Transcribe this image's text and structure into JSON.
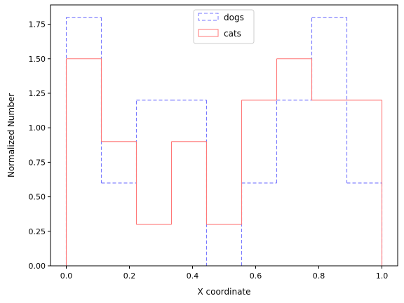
{
  "chart_data": {
    "type": "step-histogram",
    "xlabel": "X coordinate",
    "ylabel": "Normalized Number",
    "xlim": [
      -0.05,
      1.05
    ],
    "ylim": [
      0.0,
      1.89
    ],
    "xticks": [
      0.0,
      0.2,
      0.4,
      0.6,
      0.8,
      1.0
    ],
    "xtick_labels": [
      "0.0",
      "0.2",
      "0.4",
      "0.6",
      "0.8",
      "1.0"
    ],
    "yticks": [
      0.0,
      0.25,
      0.5,
      0.75,
      1.0,
      1.25,
      1.5,
      1.75
    ],
    "ytick_labels": [
      "0.00",
      "0.25",
      "0.50",
      "0.75",
      "1.00",
      "1.25",
      "1.50",
      "1.75"
    ],
    "legend_position": "top-center",
    "series": [
      {
        "name": "dogs",
        "color": "#7777ff",
        "linestyle": "dashed",
        "edges": [
          0.0,
          0.1111,
          0.2222,
          0.3333,
          0.4444,
          0.5556,
          0.6667,
          0.7778,
          0.8889,
          1.0
        ],
        "values": [
          1.8,
          0.6,
          1.2,
          1.2,
          0.0,
          0.6,
          1.2,
          1.8,
          0.6
        ]
      },
      {
        "name": "cats",
        "color": "#ff7777",
        "linestyle": "solid",
        "edges": [
          0.0,
          0.1111,
          0.2222,
          0.3333,
          0.4444,
          0.5556,
          0.6667,
          0.7778,
          0.8889,
          1.0
        ],
        "values": [
          1.5,
          0.9,
          0.3,
          0.9,
          0.3,
          1.2,
          1.5,
          1.2,
          1.2
        ]
      }
    ]
  }
}
